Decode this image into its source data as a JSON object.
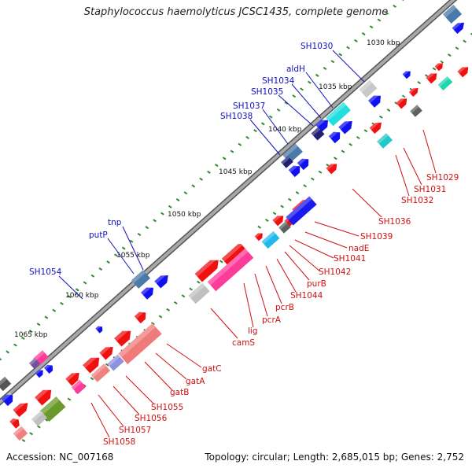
{
  "title": "Staphylococcus haemolyticus JCSC1435, complete genome",
  "footer": {
    "accession": "Accession: NC_007168",
    "summary": "Topology: circular; Length: 2,685,015 bp; Genes: 2,752"
  },
  "colors": {
    "backbone": "#8c8c8c",
    "tick": "#2e8b2e",
    "forward_label": "#1010c0",
    "reverse_label": "#d01010",
    "forward_gene": "#0a0af0",
    "reverse_gene": "#f01010"
  },
  "scale_labels": [
    "1030 kbp",
    "1035 kbp",
    "1040 kbp",
    "1045 kbp",
    "1050 kbp",
    "1055 kbp",
    "1060 kbp",
    "1065 kbp"
  ],
  "gene_labels_forward": [
    "SH1030",
    "aldH",
    "SH1034",
    "SH1035",
    "SH1037",
    "SH1038",
    "tnp",
    "putP",
    "SH1054"
  ],
  "gene_labels_reverse": [
    "SH1029",
    "SH1031",
    "SH1032",
    "SH1036",
    "SH1039",
    "nadE",
    "SH1041",
    "SH1042",
    "purB",
    "SH1044",
    "pcrB",
    "pcrA",
    "lig",
    "camS",
    "gatC",
    "gatA",
    "gatB",
    "SH1055",
    "SH1056",
    "SH1057",
    "SH1058"
  ]
}
